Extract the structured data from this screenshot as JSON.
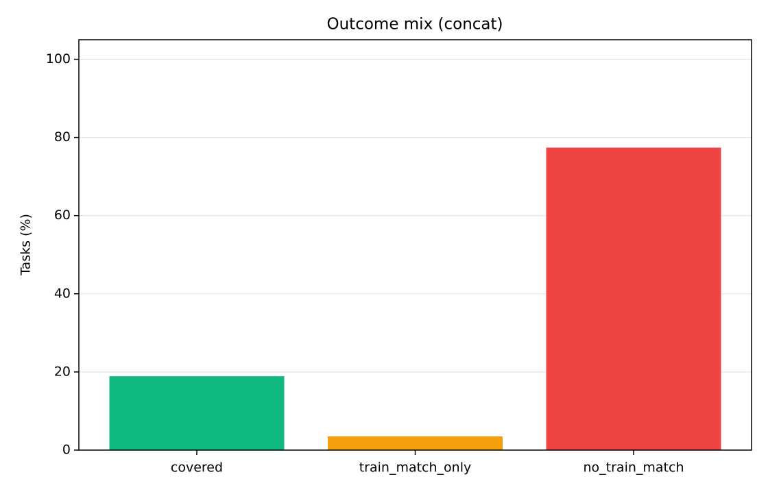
{
  "chart_data": {
    "type": "bar",
    "title": "Outcome mix (concat)",
    "y_label": "Tasks (%)",
    "categories": [
      "covered",
      "train_match_only",
      "no_train_match"
    ],
    "values": [
      18.9,
      3.5,
      77.4
    ],
    "colors": [
      "#10b981",
      "#f59e0b",
      "#ef4444"
    ],
    "ylim": [
      0,
      105
    ],
    "yticks": [
      0,
      20,
      40,
      60,
      80,
      100
    ],
    "grid": true
  }
}
